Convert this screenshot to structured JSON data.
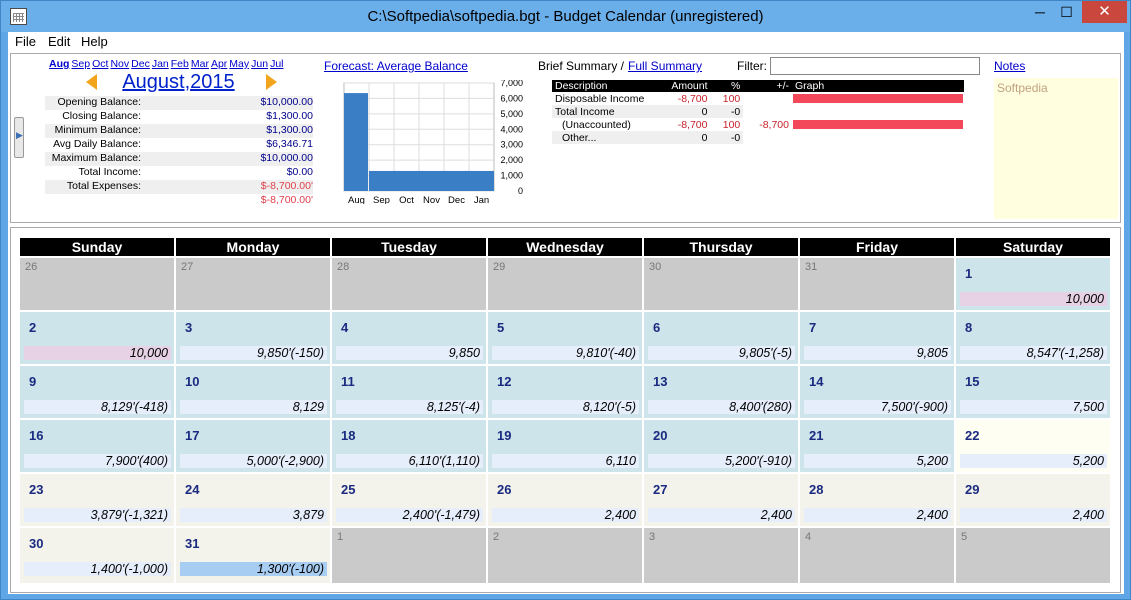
{
  "window": {
    "title": "C:\\Softpedia\\softpedia.bgt - Budget Calendar (unregistered)",
    "minimize": "─",
    "maximize": "☐",
    "close": "✕"
  },
  "menu": [
    "File",
    "Edit",
    "Help"
  ],
  "months": [
    "Aug",
    "Sep",
    "Oct",
    "Nov",
    "Dec",
    "Jan",
    "Feb",
    "Mar",
    "Apr",
    "May",
    "Jun",
    "Jul"
  ],
  "selected_month": "August,2015",
  "balances": [
    {
      "label": "Opening Balance:",
      "value": "$10,000.00",
      "neg": false
    },
    {
      "label": "Closing Balance:",
      "value": "$1,300.00",
      "neg": false
    },
    {
      "label": "Minimum Balance:",
      "value": "$1,300.00",
      "neg": false
    },
    {
      "label": "Avg Daily Balance:",
      "value": "$6,346.71",
      "neg": false
    },
    {
      "label": "Maximum Balance:",
      "value": "$10,000.00",
      "neg": false
    },
    {
      "label": "Total Income:",
      "value": "$0.00",
      "neg": false
    },
    {
      "label": "Total Expenses:",
      "value": "$-8,700.00'",
      "neg": true
    },
    {
      "label": "",
      "value": "$-8,700.00'",
      "neg": true
    }
  ],
  "forecast": {
    "link": "Forecast: Average Balance",
    "chart_data": {
      "type": "bar",
      "categories": [
        "Aug",
        "Sep",
        "Oct",
        "Nov",
        "Dec",
        "Jan"
      ],
      "values": [
        6347,
        1300,
        1300,
        1300,
        1300,
        1300
      ],
      "ylim": [
        0,
        7000
      ],
      "yticks": [
        0,
        1000,
        2000,
        3000,
        4000,
        5000,
        6000,
        7000
      ],
      "ytick_labels": [
        "0",
        "1,000",
        "2,000",
        "3,000",
        "4,000",
        "5,000",
        "6,000",
        "7,000"
      ],
      "bar_color": "#3a7fc6",
      "grid": true
    }
  },
  "summary": {
    "brief_label": "Brief Summary /",
    "full_link": "Full Summary",
    "filter_label": "Filter:",
    "filter_value": "",
    "columns": [
      "Description",
      "Amount",
      "%",
      "+/-",
      "Graph"
    ],
    "rows": [
      {
        "description": "Disposable Income",
        "amount": "-8,700",
        "pct": "100",
        "diff": "",
        "graph": 1.0
      },
      {
        "description": "Total Income",
        "amount": "0",
        "pct": "-0",
        "diff": "",
        "graph": 0
      },
      {
        "description": "(Unaccounted)",
        "amount": "-8,700",
        "pct": "100",
        "diff": "-8,700",
        "graph": 1.0
      },
      {
        "description": "Other...",
        "amount": "0",
        "pct": "-0",
        "diff": "",
        "graph": 0
      }
    ]
  },
  "notes": {
    "link": "Notes",
    "text": "Softpedia"
  },
  "weekdays": [
    "Sunday",
    "Monday",
    "Tuesday",
    "Wednesday",
    "Thursday",
    "Friday",
    "Saturday"
  ],
  "weeks": [
    [
      {
        "day": "26",
        "style": "gray",
        "dim": true,
        "bal": ""
      },
      {
        "day": "27",
        "style": "gray",
        "dim": true,
        "bal": ""
      },
      {
        "day": "28",
        "style": "gray",
        "dim": true,
        "bal": ""
      },
      {
        "day": "29",
        "style": "gray",
        "dim": true,
        "bal": ""
      },
      {
        "day": "30",
        "style": "gray",
        "dim": true,
        "bal": ""
      },
      {
        "day": "31",
        "style": "gray",
        "dim": true,
        "bal": ""
      },
      {
        "day": "1",
        "style": "blue",
        "dim": false,
        "bal": "10,000",
        "balstyle": "pink"
      }
    ],
    [
      {
        "day": "2",
        "style": "blue",
        "dim": false,
        "bal": "10,000",
        "balstyle": "pink"
      },
      {
        "day": "3",
        "style": "blue",
        "dim": false,
        "bal": "9,850'(-150)"
      },
      {
        "day": "4",
        "style": "blue",
        "dim": false,
        "bal": "9,850"
      },
      {
        "day": "5",
        "style": "blue",
        "dim": false,
        "bal": "9,810'(-40)"
      },
      {
        "day": "6",
        "style": "blue",
        "dim": false,
        "bal": "9,805'(-5)"
      },
      {
        "day": "7",
        "style": "blue",
        "dim": false,
        "bal": "9,805"
      },
      {
        "day": "8",
        "style": "blue",
        "dim": false,
        "bal": "8,547'(-1,258)"
      }
    ],
    [
      {
        "day": "9",
        "style": "blue",
        "dim": false,
        "bal": "8,129'(-418)"
      },
      {
        "day": "10",
        "style": "blue",
        "dim": false,
        "bal": "8,129"
      },
      {
        "day": "11",
        "style": "blue",
        "dim": false,
        "bal": "8,125'(-4)"
      },
      {
        "day": "12",
        "style": "blue",
        "dim": false,
        "bal": "8,120'(-5)"
      },
      {
        "day": "13",
        "style": "blue",
        "dim": false,
        "bal": "8,400'(280)"
      },
      {
        "day": "14",
        "style": "blue",
        "dim": false,
        "bal": "7,500'(-900)"
      },
      {
        "day": "15",
        "style": "blue",
        "dim": false,
        "bal": "7,500"
      }
    ],
    [
      {
        "day": "16",
        "style": "blue",
        "dim": false,
        "bal": "7,900'(400)"
      },
      {
        "day": "17",
        "style": "blue",
        "dim": false,
        "bal": "5,000'(-2,900)"
      },
      {
        "day": "18",
        "style": "blue",
        "dim": false,
        "bal": "6,110'(1,110)"
      },
      {
        "day": "19",
        "style": "blue",
        "dim": false,
        "bal": "6,110"
      },
      {
        "day": "20",
        "style": "blue",
        "dim": false,
        "bal": "5,200'(-910)"
      },
      {
        "day": "21",
        "style": "blue",
        "dim": false,
        "bal": "5,200"
      },
      {
        "day": "22",
        "style": "yellow",
        "dim": false,
        "bal": "5,200"
      }
    ],
    [
      {
        "day": "23",
        "style": "cream",
        "dim": false,
        "bal": "3,879'(-1,321)"
      },
      {
        "day": "24",
        "style": "cream",
        "dim": false,
        "bal": "3,879"
      },
      {
        "day": "25",
        "style": "cream",
        "dim": false,
        "bal": "2,400'(-1,479)"
      },
      {
        "day": "26",
        "style": "cream",
        "dim": false,
        "bal": "2,400"
      },
      {
        "day": "27",
        "style": "cream",
        "dim": false,
        "bal": "2,400"
      },
      {
        "day": "28",
        "style": "cream",
        "dim": false,
        "bal": "2,400"
      },
      {
        "day": "29",
        "style": "cream",
        "dim": false,
        "bal": "2,400"
      }
    ],
    [
      {
        "day": "30",
        "style": "cream",
        "dim": false,
        "bal": "1,400'(-1,000)"
      },
      {
        "day": "31",
        "style": "cream",
        "dim": false,
        "bal": "1,300'(-100)",
        "balstyle": "sel"
      },
      {
        "day": "1",
        "style": "gray",
        "dim": true,
        "bal": ""
      },
      {
        "day": "2",
        "style": "gray",
        "dim": true,
        "bal": ""
      },
      {
        "day": "3",
        "style": "gray",
        "dim": true,
        "bal": ""
      },
      {
        "day": "4",
        "style": "gray",
        "dim": true,
        "bal": ""
      },
      {
        "day": "5",
        "style": "gray",
        "dim": true,
        "bal": ""
      }
    ]
  ]
}
